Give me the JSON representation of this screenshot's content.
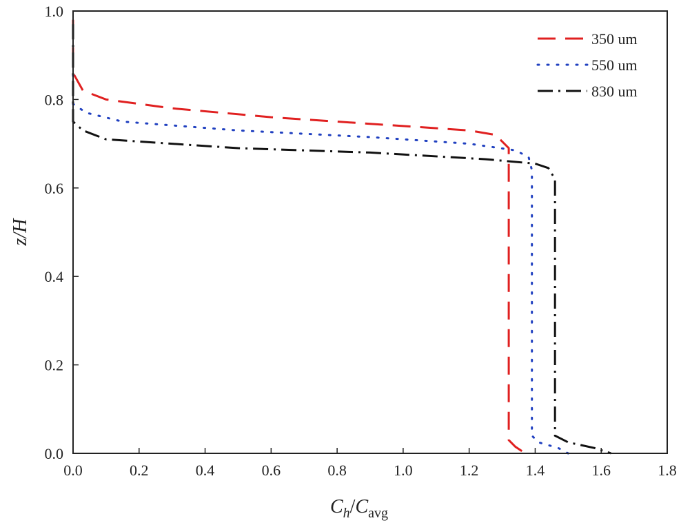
{
  "chart_data": {
    "type": "line",
    "title": "",
    "xlabel": {
      "main": "C",
      "main_sub": "h",
      "sep": "/",
      "denom": "C",
      "denom_sub": "avg"
    },
    "ylabel": "z/H",
    "xlim": [
      0.0,
      1.8
    ],
    "ylim": [
      0.0,
      1.0
    ],
    "xticks": [
      "0.0",
      "0.2",
      "0.4",
      "0.6",
      "0.8",
      "1.0",
      "1.2",
      "1.4",
      "1.6",
      "1.8"
    ],
    "yticks": [
      "0.0",
      "0.2",
      "0.4",
      "0.6",
      "0.8",
      "1.0"
    ],
    "grid": false,
    "legend_position": "top-right",
    "series": [
      {
        "name": "350 um",
        "color": "#e02020",
        "dash": "dashed",
        "points": [
          [
            0.0,
            0.98
          ],
          [
            0.0,
            0.86
          ],
          [
            0.03,
            0.82
          ],
          [
            0.1,
            0.8
          ],
          [
            0.3,
            0.78
          ],
          [
            0.6,
            0.76
          ],
          [
            0.9,
            0.745
          ],
          [
            1.2,
            0.73
          ],
          [
            1.28,
            0.72
          ],
          [
            1.32,
            0.69
          ],
          [
            1.32,
            0.64
          ],
          [
            1.32,
            0.03
          ],
          [
            1.34,
            0.015
          ],
          [
            1.37,
            0.0
          ]
        ]
      },
      {
        "name": "550 um",
        "color": "#2040c0",
        "dash": "dotted",
        "points": [
          [
            0.0,
            0.9
          ],
          [
            0.0,
            0.79
          ],
          [
            0.04,
            0.77
          ],
          [
            0.15,
            0.75
          ],
          [
            0.5,
            0.73
          ],
          [
            0.9,
            0.715
          ],
          [
            1.2,
            0.7
          ],
          [
            1.34,
            0.685
          ],
          [
            1.38,
            0.67
          ],
          [
            1.39,
            0.64
          ],
          [
            1.39,
            0.05
          ],
          [
            1.39,
            0.04
          ],
          [
            1.41,
            0.025
          ],
          [
            1.47,
            0.012
          ],
          [
            1.5,
            0.0
          ]
        ]
      },
      {
        "name": "830 um",
        "color": "#111111",
        "dash": "dashdot",
        "points": [
          [
            0.0,
            0.97
          ],
          [
            0.0,
            0.75
          ],
          [
            0.03,
            0.73
          ],
          [
            0.1,
            0.71
          ],
          [
            0.5,
            0.69
          ],
          [
            0.9,
            0.68
          ],
          [
            1.25,
            0.665
          ],
          [
            1.4,
            0.655
          ],
          [
            1.44,
            0.645
          ],
          [
            1.46,
            0.62
          ],
          [
            1.46,
            0.05
          ],
          [
            1.46,
            0.04
          ],
          [
            1.5,
            0.025
          ],
          [
            1.58,
            0.012
          ],
          [
            1.63,
            0.0
          ]
        ]
      }
    ]
  }
}
